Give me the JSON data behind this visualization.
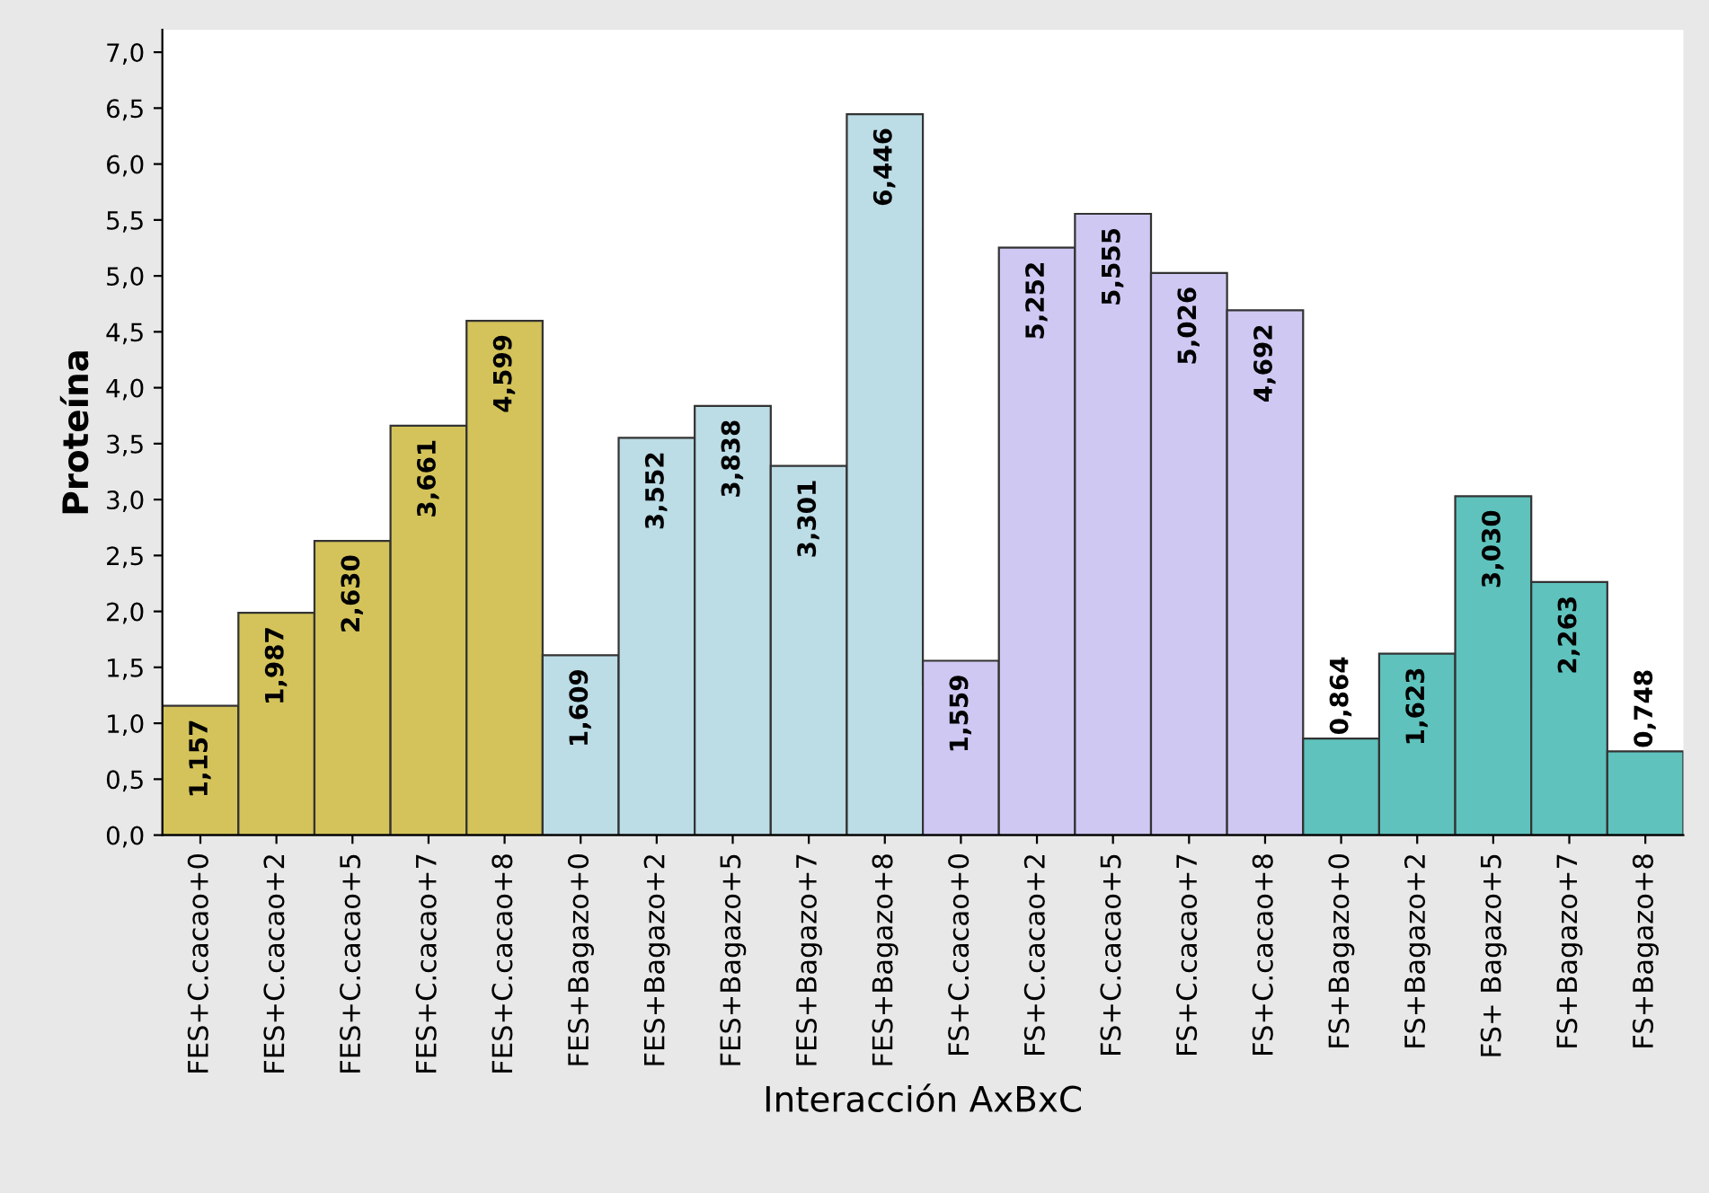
{
  "chart_data": {
    "type": "bar",
    "xlabel": "Interacción AxBxC",
    "ylabel": "Proteína",
    "categories": [
      "FES+C.cacao+0",
      "FES+C.cacao+2",
      "FES+C.cacao+5",
      "FES+C.cacao+7",
      "FES+C.cacao+8",
      "FES+Bagazo+0",
      "FES+Bagazo+2",
      "FES+Bagazo+5",
      "FES+Bagazo+7",
      "FES+Bagazo+8",
      "FS+C.cacao+0",
      "FS+C.cacao+2",
      "FS+C.cacao+5",
      "FS+C.cacao+7",
      "FS+C.cacao+8",
      "FS+Bagazo+0",
      "FS+Bagazo+2",
      "FS+ Bagazo+5",
      "FS+Bagazo+7",
      "FS+Bagazo+8"
    ],
    "values": [
      1.157,
      1.987,
      2.63,
      3.661,
      4.599,
      1.609,
      3.552,
      3.838,
      3.301,
      6.446,
      1.559,
      5.252,
      5.555,
      5.026,
      4.692,
      0.864,
      1.623,
      3.03,
      2.263,
      0.748
    ],
    "value_labels": [
      "1,157",
      "1,987",
      "2,630",
      "3,661",
      "4,599",
      "1,609",
      "3,552",
      "3,838",
      "3,301",
      "6,446",
      "1,559",
      "5,252",
      "5,555",
      "5,026",
      "4,692",
      "0,864",
      "1,623",
      "3,030",
      "2,263",
      "0,748"
    ],
    "colors": [
      "#d4c35a",
      "#d4c35a",
      "#d4c35a",
      "#d4c35a",
      "#d4c35a",
      "#bcdce6",
      "#bcdce6",
      "#bcdce6",
      "#bcdce6",
      "#bcdce6",
      "#cfc8f2",
      "#cfc8f2",
      "#cfc8f2",
      "#cfc8f2",
      "#cfc8f2",
      "#5fc2bd",
      "#5fc2bd",
      "#5fc2bd",
      "#5fc2bd",
      "#5fc2bd"
    ],
    "ylim": [
      0,
      7.2
    ],
    "yticks": [
      {
        "value": 0,
        "label": "0,0"
      },
      {
        "value": 0.5,
        "label": "0,5"
      },
      {
        "value": 1,
        "label": "1,0"
      },
      {
        "value": 1.5,
        "label": "1,5"
      },
      {
        "value": 2,
        "label": "2,0"
      },
      {
        "value": 2.5,
        "label": "2,5"
      },
      {
        "value": 3,
        "label": "3,0"
      },
      {
        "value": 3.5,
        "label": "3,5"
      },
      {
        "value": 4,
        "label": "4,0"
      },
      {
        "value": 4.5,
        "label": "4,5"
      },
      {
        "value": 5,
        "label": "5,0"
      },
      {
        "value": 5.5,
        "label": "5,5"
      },
      {
        "value": 6,
        "label": "6,0"
      },
      {
        "value": 6.5,
        "label": "6,5"
      },
      {
        "value": 7,
        "label": "7,0"
      }
    ],
    "grid": false
  }
}
